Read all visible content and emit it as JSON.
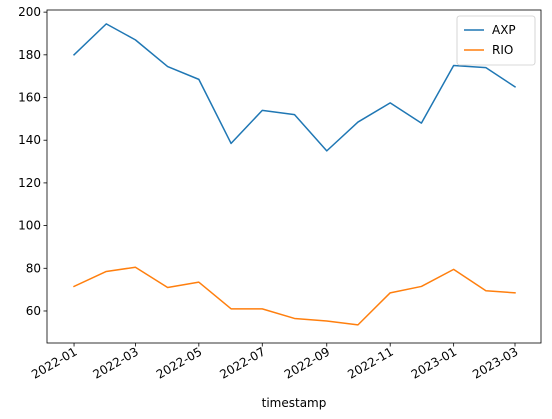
{
  "chart_data": {
    "type": "line",
    "xlabel": "timestamp",
    "ylabel": "",
    "x": [
      "2022-01-01",
      "2022-02-01",
      "2022-03-01",
      "2022-04-01",
      "2022-05-01",
      "2022-06-01",
      "2022-07-01",
      "2022-08-01",
      "2022-09-01",
      "2022-10-01",
      "2022-11-01",
      "2022-12-01",
      "2023-01-01",
      "2023-02-01",
      "2023-03-01"
    ],
    "series": [
      {
        "name": "AXP",
        "color": "#1f77b4",
        "values": [
          180,
          194.5,
          187,
          174.5,
          168.5,
          138.5,
          154,
          152,
          135,
          148.5,
          157.5,
          148,
          175,
          174,
          165
        ]
      },
      {
        "name": "RIO",
        "color": "#ff7f0e",
        "values": [
          71.5,
          78.5,
          80.5,
          71,
          73.5,
          61,
          61,
          56.5,
          55.3,
          53.5,
          68.5,
          71.5,
          79.5,
          69.5,
          68.5
        ]
      }
    ],
    "ylim": [
      45,
      201
    ],
    "xlim": [
      "2021-12-06",
      "2023-03-26"
    ],
    "yticks": [
      60,
      80,
      100,
      120,
      140,
      160,
      180,
      200
    ],
    "xticks": [
      "2022-01-01",
      "2022-03-01",
      "2022-05-01",
      "2022-07-01",
      "2022-09-01",
      "2022-11-01",
      "2023-01-01",
      "2023-03-01"
    ],
    "xtick_labels": [
      "2022-01",
      "2022-03",
      "2022-05",
      "2022-07",
      "2022-09",
      "2022-11",
      "2023-01",
      "2023-03"
    ],
    "legend": "top-right",
    "grid": false
  }
}
